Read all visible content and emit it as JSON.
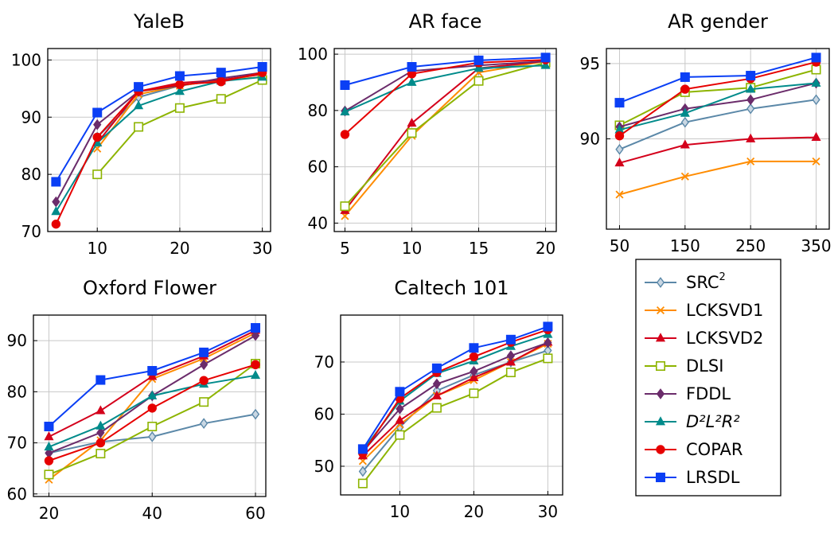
{
  "legend": [
    {
      "label": "SRC",
      "sup": "2",
      "color": "#5b88a8",
      "marker": "diamond-open"
    },
    {
      "label": "LCKSVD1",
      "color": "#ff8c00",
      "marker": "x"
    },
    {
      "label": "LCKSVD2",
      "color": "#d4001b",
      "marker": "triangle"
    },
    {
      "label": "DLSI",
      "color": "#8db400",
      "marker": "square-open"
    },
    {
      "label": "FDDL",
      "color": "#6b2c6b",
      "marker": "diamond"
    },
    {
      "label": "D²L²R²",
      "color": "#008b8b",
      "marker": "triangle"
    },
    {
      "label": "COPAR",
      "color": "#e60000",
      "marker": "circle"
    },
    {
      "label": "LRSDL",
      "color": "#0a3ff5",
      "marker": "square"
    }
  ],
  "chart_data": [
    {
      "type": "line",
      "title": "YaleB",
      "x": [
        5,
        10,
        15,
        20,
        25,
        30
      ],
      "xticks": [
        10,
        20,
        30
      ],
      "yticks": [
        70,
        80,
        90,
        100
      ],
      "xlim": [
        4,
        31
      ],
      "ylim": [
        70,
        102
      ],
      "series": [
        {
          "name": "SRC²",
          "values": [
            null,
            86.5,
            93.5,
            95.5,
            96.5,
            97.5
          ]
        },
        {
          "name": "LCKSVD1",
          "values": [
            null,
            84.5,
            94,
            95.5,
            96.5,
            97
          ]
        },
        {
          "name": "LCKSVD2",
          "values": [
            null,
            85.5,
            94.5,
            96,
            96.5,
            97.5
          ]
        },
        {
          "name": "DLSI",
          "values": [
            null,
            80,
            88.3,
            91.6,
            93.2,
            96.5
          ]
        },
        {
          "name": "FDDL",
          "values": [
            75.2,
            88.7,
            94.5,
            95.5,
            96.8,
            97.8
          ]
        },
        {
          "name": "D²L²R²",
          "values": [
            73.5,
            85.5,
            92,
            94.5,
            96.3,
            97
          ]
        },
        {
          "name": "COPAR",
          "values": [
            71.3,
            86.5,
            94.5,
            95.7,
            96.2,
            97.8
          ]
        },
        {
          "name": "LRSDL",
          "values": [
            78.7,
            90.8,
            95.3,
            97.2,
            97.8,
            98.8
          ]
        }
      ]
    },
    {
      "type": "line",
      "title": "AR face",
      "x": [
        5,
        10,
        15,
        20
      ],
      "xticks": [
        5,
        10,
        15,
        20
      ],
      "yticks": [
        40,
        60,
        80,
        100
      ],
      "xlim": [
        4.2,
        20.8
      ],
      "ylim": [
        37,
        102
      ],
      "series": [
        {
          "name": "SRC²",
          "values": [
            null,
            null,
            94.5,
            97.5
          ]
        },
        {
          "name": "LCKSVD1",
          "values": [
            42.5,
            71,
            93.5,
            97.5
          ]
        },
        {
          "name": "LCKSVD2",
          "values": [
            44.5,
            75.5,
            95,
            97.5
          ]
        },
        {
          "name": "DLSI",
          "values": [
            46,
            72,
            90.5,
            97
          ]
        },
        {
          "name": "FDDL",
          "values": [
            79.8,
            94,
            96,
            97.5
          ]
        },
        {
          "name": "D²L²R²",
          "values": [
            79.5,
            90,
            95,
            96
          ]
        },
        {
          "name": "COPAR",
          "values": [
            71.5,
            93,
            97,
            98
          ]
        },
        {
          "name": "LRSDL",
          "values": [
            89,
            95.5,
            97.8,
            98.8
          ]
        }
      ]
    },
    {
      "type": "line",
      "title": "AR gender",
      "x": [
        50,
        150,
        250,
        350
      ],
      "xticks": [
        50,
        150,
        250,
        350
      ],
      "yticks": [
        90,
        95
      ],
      "xlim": [
        30,
        370
      ],
      "ylim": [
        84,
        96
      ],
      "series": [
        {
          "name": "SRC²",
          "values": [
            89.3,
            91.1,
            92,
            92.6
          ]
        },
        {
          "name": "LCKSVD1",
          "values": [
            86.3,
            87.5,
            88.5,
            88.5
          ]
        },
        {
          "name": "LCKSVD2",
          "values": [
            88.4,
            89.6,
            90,
            90.1
          ]
        },
        {
          "name": "DLSI",
          "values": [
            90.9,
            93.1,
            93.4,
            94.6
          ]
        },
        {
          "name": "FDDL",
          "values": [
            90.8,
            92,
            92.6,
            93.7
          ]
        },
        {
          "name": "D²L²R²",
          "values": [
            90.6,
            91.7,
            93.3,
            93.7
          ]
        },
        {
          "name": "COPAR",
          "values": [
            90.2,
            93.3,
            94,
            95.1
          ]
        },
        {
          "name": "LRSDL",
          "values": [
            92.4,
            94.1,
            94.2,
            95.4
          ]
        }
      ]
    },
    {
      "type": "line",
      "title": "Oxford Flower",
      "x": [
        20,
        30,
        40,
        50,
        60
      ],
      "xticks": [
        20,
        40,
        60
      ],
      "yticks": [
        60,
        70,
        80,
        90
      ],
      "xlim": [
        17,
        62
      ],
      "ylim": [
        59.5,
        95
      ],
      "series": [
        {
          "name": "SRC²",
          "values": [
            68,
            70.2,
            71.2,
            73.8,
            75.6
          ]
        },
        {
          "name": "LCKSVD1",
          "values": [
            62.8,
            70.5,
            82.5,
            86.5,
            91.5
          ]
        },
        {
          "name": "LCKSVD2",
          "values": [
            71.2,
            76.3,
            83,
            87,
            92
          ]
        },
        {
          "name": "DLSI",
          "values": [
            63.8,
            67.9,
            73.2,
            78,
            85.5
          ]
        },
        {
          "name": "FDDL",
          "values": [
            68,
            72,
            79.2,
            85.3,
            91
          ]
        },
        {
          "name": "D²L²R²",
          "values": [
            69.2,
            73.3,
            79.2,
            81.5,
            83.2
          ]
        },
        {
          "name": "COPAR",
          "values": [
            66.5,
            70,
            76.8,
            82.2,
            85.3
          ]
        },
        {
          "name": "LRSDL",
          "values": [
            73.2,
            82.3,
            84.1,
            87.7,
            92.5
          ]
        }
      ]
    },
    {
      "type": "line",
      "title": "Caltech 101",
      "x": [
        5,
        10,
        15,
        20,
        25,
        30
      ],
      "xticks": [
        10,
        20,
        30
      ],
      "yticks": [
        50,
        60,
        70
      ],
      "xlim": [
        2,
        32
      ],
      "ylim": [
        44.5,
        79
      ],
      "series": [
        {
          "name": "SRC²",
          "values": [
            49,
            57.5,
            64.5,
            67.5,
            70,
            72.2
          ]
        },
        {
          "name": "LCKSVD1",
          "values": [
            51,
            58,
            63.5,
            66.5,
            70,
            73.5
          ]
        },
        {
          "name": "LCKSVD2",
          "values": [
            52,
            58.8,
            63.5,
            67,
            70,
            73.8
          ]
        },
        {
          "name": "DLSI",
          "values": [
            46.7,
            56,
            61.2,
            64,
            68,
            70.7
          ]
        },
        {
          "name": "FDDL",
          "values": [
            52.8,
            61,
            65.8,
            68.2,
            71.2,
            73.7
          ]
        },
        {
          "name": "D²L²R²",
          "values": [
            53,
            62.5,
            67.8,
            70.2,
            73,
            75.3
          ]
        },
        {
          "name": "COPAR",
          "values": [
            52.5,
            63,
            68,
            71,
            73.8,
            76.2
          ]
        },
        {
          "name": "LRSDL",
          "values": [
            53.3,
            64.3,
            68.8,
            72.7,
            74.3,
            76.8
          ]
        }
      ]
    }
  ]
}
